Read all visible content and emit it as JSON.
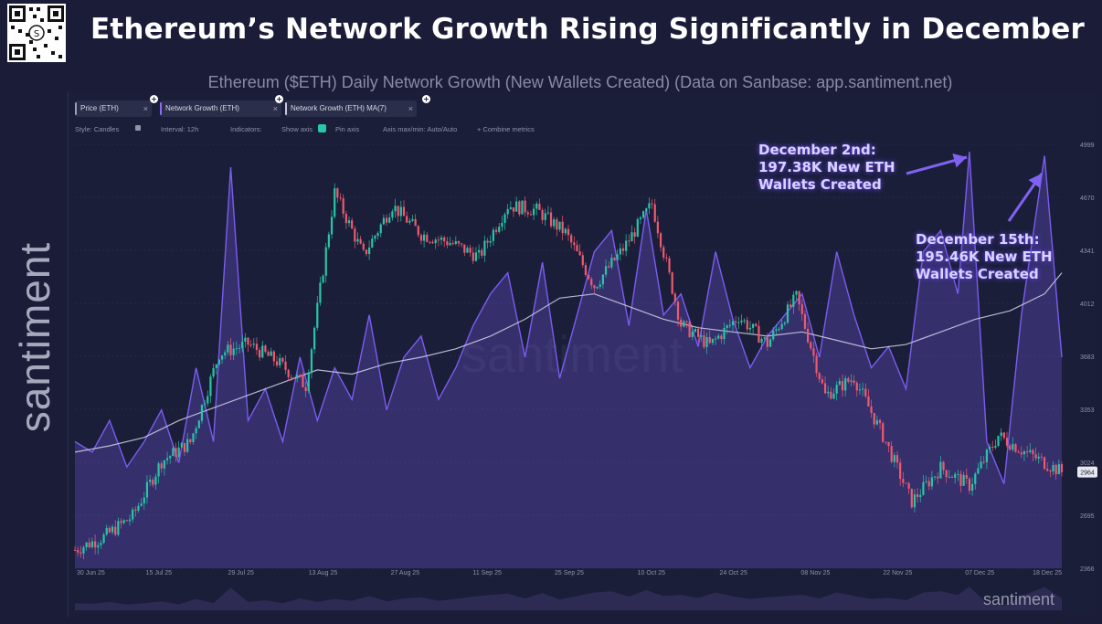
{
  "headline": "Ethereum’s Network Growth Rising Significantly in December",
  "subtitle": "Ethereum ($ETH) Daily Network Growth (New Wallets Created) (Data on Sanbase: app.santiment.net)",
  "brand": "santiment",
  "watermark": "santiment",
  "tabs": [
    {
      "label": "Price (ETH)",
      "x": "×",
      "color": "#9aa0b6"
    },
    {
      "label": "Network Growth (ETH)",
      "x": "×",
      "color": "#8b6cf0"
    },
    {
      "label": "Network Growth (ETH) MA(7)",
      "x": "×",
      "color": "#c9c6e8"
    }
  ],
  "toolbar": {
    "style": "Style: Candles",
    "interval": "Interval: 12h",
    "indicators": "Indicators:",
    "show_axis": "Show axis",
    "pin_axis": "Pin axis",
    "axis_range": "Axis max/min: Auto/Auto",
    "combine": "+ Combine metrics"
  },
  "annotations": {
    "dec2": [
      "December 2nd:",
      "197.38K New ETH",
      "Wallets Created"
    ],
    "dec15": [
      "December 15th:",
      "195.46K New ETH",
      "Wallets Created"
    ]
  },
  "colors": {
    "background": "#1b1e39",
    "candle_up": "#26c6a6",
    "candle_down": "#ef5a6f",
    "network_growth": "#7b5cf0",
    "ma7": "#d4d2ea",
    "annotation_arrow": "#7f62f2"
  },
  "chart_data": {
    "type": "line",
    "x_tick_labels": [
      "30 Jun 25",
      "15 Jul 25",
      "29 Jul 25",
      "13 Aug 25",
      "27 Aug 25",
      "11 Sep 25",
      "25 Sep 25",
      "10 Oct 25",
      "24 Oct 25",
      "08 Nov 25",
      "22 Nov 25",
      "07 Dec 25",
      "18 Dec 25"
    ],
    "y_tick_labels_right": [
      "4999",
      "4670",
      "4341",
      "4012",
      "3683",
      "3353",
      "3024",
      "2695",
      "2366"
    ],
    "price_axis": {
      "min": 2366,
      "max": 4999,
      "last_price": "2964"
    },
    "network_growth_axis": {
      "min": 0,
      "max": 200000
    },
    "series": [
      {
        "name": "Price (ETH)",
        "kind": "candles",
        "dates": [
          "2025-06-30",
          "2025-07-05",
          "2025-07-10",
          "2025-07-15",
          "2025-07-20",
          "2025-07-25",
          "2025-07-30",
          "2025-08-04",
          "2025-08-09",
          "2025-08-14",
          "2025-08-19",
          "2025-08-24",
          "2025-08-29",
          "2025-09-03",
          "2025-09-08",
          "2025-09-13",
          "2025-09-18",
          "2025-09-23",
          "2025-09-28",
          "2025-10-03",
          "2025-10-08",
          "2025-10-13",
          "2025-10-18",
          "2025-10-23",
          "2025-10-28",
          "2025-11-02",
          "2025-11-07",
          "2025-11-12",
          "2025-11-17",
          "2025-11-22",
          "2025-11-27",
          "2025-12-02",
          "2025-12-07",
          "2025-12-12",
          "2025-12-18"
        ],
        "values": [
          2480,
          2560,
          2690,
          3030,
          3150,
          3700,
          3760,
          3650,
          3500,
          4700,
          4310,
          4620,
          4440,
          4390,
          4300,
          4620,
          4590,
          4450,
          4120,
          4350,
          4630,
          3880,
          3750,
          3930,
          3760,
          4050,
          3440,
          3550,
          3190,
          2780,
          2990,
          2880,
          3190,
          3080,
          2964
        ]
      },
      {
        "name": "Network Growth (ETH)",
        "kind": "line",
        "dates": [
          "2025-06-30",
          "2025-07-03",
          "2025-07-06",
          "2025-07-09",
          "2025-07-12",
          "2025-07-15",
          "2025-07-18",
          "2025-07-21",
          "2025-07-24",
          "2025-07-27",
          "2025-07-30",
          "2025-08-02",
          "2025-08-05",
          "2025-08-08",
          "2025-08-11",
          "2025-08-14",
          "2025-08-17",
          "2025-08-20",
          "2025-08-23",
          "2025-08-26",
          "2025-08-29",
          "2025-09-01",
          "2025-09-04",
          "2025-09-07",
          "2025-09-10",
          "2025-09-13",
          "2025-09-16",
          "2025-09-19",
          "2025-09-22",
          "2025-09-25",
          "2025-09-28",
          "2025-10-01",
          "2025-10-04",
          "2025-10-07",
          "2025-10-10",
          "2025-10-13",
          "2025-10-16",
          "2025-10-19",
          "2025-10-22",
          "2025-10-25",
          "2025-10-28",
          "2025-10-31",
          "2025-11-03",
          "2025-11-06",
          "2025-11-09",
          "2025-11-12",
          "2025-11-15",
          "2025-11-18",
          "2025-11-21",
          "2025-11-24",
          "2025-11-27",
          "2025-11-30",
          "2025-12-02",
          "2025-12-05",
          "2025-12-08",
          "2025-12-11",
          "2025-12-15",
          "2025-12-18"
        ],
        "values": [
          60000,
          55000,
          70000,
          48000,
          60000,
          75000,
          50000,
          95000,
          60000,
          190000,
          70000,
          85000,
          60000,
          100000,
          70000,
          95000,
          80000,
          120000,
          75000,
          100000,
          110000,
          80000,
          95000,
          115000,
          130000,
          140000,
          100000,
          145000,
          90000,
          120000,
          150000,
          160000,
          115000,
          170000,
          120000,
          130000,
          105000,
          150000,
          118000,
          95000,
          110000,
          120000,
          130000,
          100000,
          150000,
          120000,
          95000,
          105000,
          85000,
          150000,
          160000,
          130000,
          197380,
          60000,
          40000,
          120000,
          195460,
          100000
        ]
      },
      {
        "name": "Network Growth (ETH) MA(7)",
        "kind": "line",
        "dates": [
          "2025-06-30",
          "2025-07-06",
          "2025-07-12",
          "2025-07-18",
          "2025-07-24",
          "2025-07-30",
          "2025-08-05",
          "2025-08-11",
          "2025-08-17",
          "2025-08-23",
          "2025-08-29",
          "2025-09-04",
          "2025-09-10",
          "2025-09-16",
          "2025-09-22",
          "2025-09-28",
          "2025-10-04",
          "2025-10-10",
          "2025-10-16",
          "2025-10-22",
          "2025-10-28",
          "2025-11-03",
          "2025-11-09",
          "2025-11-15",
          "2025-11-21",
          "2025-11-27",
          "2025-12-03",
          "2025-12-09",
          "2025-12-15",
          "2025-12-18"
        ],
        "values": [
          55000,
          58000,
          62000,
          70000,
          76000,
          82000,
          88000,
          94000,
          92000,
          97000,
          100000,
          104000,
          110000,
          118000,
          128000,
          130000,
          124000,
          118000,
          114000,
          112000,
          110000,
          112000,
          108000,
          104000,
          106000,
          112000,
          118000,
          122000,
          130000,
          140000
        ]
      }
    ],
    "annotations": [
      "December 2nd: 197.38K New ETH Wallets Created",
      "December 15th: 195.46K New ETH Wallets Created"
    ]
  }
}
